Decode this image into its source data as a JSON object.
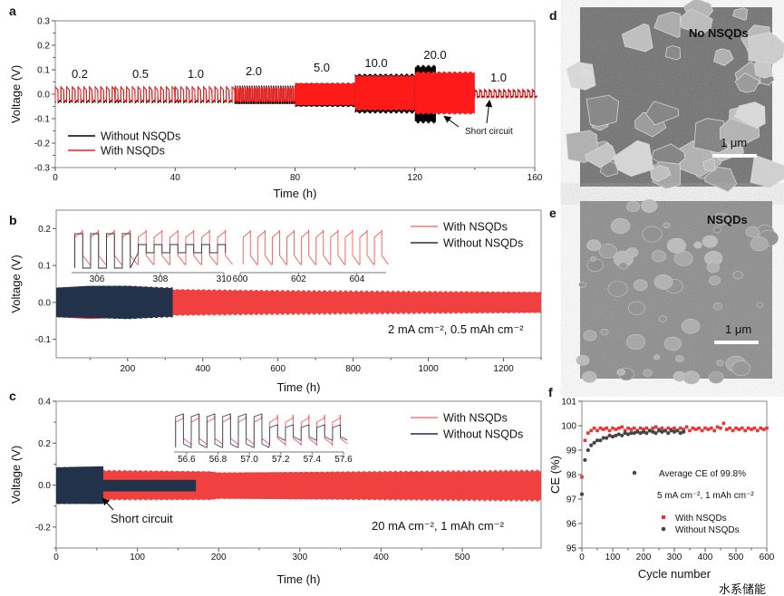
{
  "panel_labels": {
    "a": "a",
    "b": "b",
    "c": "c",
    "d": "d",
    "e": "e",
    "f": "f"
  },
  "colors": {
    "with_nsqds": "#ff1a1a",
    "with_nsqds_bc": "#f04040",
    "without_nsqds_a": "#000000",
    "without_nsqds_bc": "#22324a",
    "ce_with": "#ee3333",
    "ce_without": "#444444"
  },
  "chart_data": [
    {
      "id": "a",
      "type": "line",
      "xlabel": "Time (h)",
      "ylabel": "Voltage (V)",
      "xlim": [
        0,
        160
      ],
      "ylim": [
        -0.3,
        0.3
      ],
      "xticks": [
        "0",
        "40",
        "80",
        "120",
        "160"
      ],
      "yticks": [
        "-0.3",
        "-0.2",
        "-0.1",
        "0.0",
        "0.1",
        "0.2",
        "0.3"
      ],
      "legend": {
        "placement": "lower-left",
        "items": [
          "Without NSQDs",
          "With NSQDs"
        ]
      },
      "annotation": "Short circuit",
      "segments": [
        {
          "label": "0.2",
          "t": [
            0,
            20
          ],
          "with_nsqds": [
            -0.03,
            0.03
          ],
          "without_nsqds": [
            -0.035,
            0.03
          ]
        },
        {
          "label": "0.5",
          "t": [
            20,
            40
          ],
          "with_nsqds": [
            -0.03,
            0.03
          ],
          "without_nsqds": [
            -0.035,
            0.03
          ]
        },
        {
          "label": "1.0",
          "t": [
            40,
            60
          ],
          "with_nsqds": [
            -0.03,
            0.03
          ],
          "without_nsqds": [
            -0.035,
            0.03
          ]
        },
        {
          "label": "2.0",
          "t": [
            60,
            80
          ],
          "with_nsqds": [
            -0.03,
            0.03
          ],
          "without_nsqds": [
            -0.04,
            0.035
          ]
        },
        {
          "label": "5.0",
          "t": [
            80,
            100
          ],
          "with_nsqds": [
            -0.045,
            0.045
          ],
          "without_nsqds": [
            -0.05,
            0.045
          ]
        },
        {
          "label": "10.0",
          "t": [
            100,
            120
          ],
          "with_nsqds": [
            -0.065,
            0.075
          ],
          "without_nsqds": [
            -0.075,
            0.08
          ]
        },
        {
          "label": "20.0",
          "t": [
            120,
            140
          ],
          "with_nsqds": [
            -0.08,
            0.09
          ],
          "without_nsqds": [
            -0.115,
            0.115
          ],
          "without_nsqds_end": 127
        },
        {
          "label": "1.0",
          "t": [
            140,
            160
          ],
          "with_nsqds": [
            -0.015,
            0.02
          ],
          "without_nsqds": [
            -0.01,
            0.015
          ]
        }
      ]
    },
    {
      "id": "b",
      "type": "line",
      "xlabel": "Time (h)",
      "ylabel": "Voltage (V)",
      "xlim": [
        10,
        1300
      ],
      "ylim": [
        -0.15,
        0.25
      ],
      "xticks": [
        "200",
        "400",
        "600",
        "800",
        "1000",
        "1200"
      ],
      "yticks": [
        "-0.1",
        "0.0",
        "0.1",
        "0.2"
      ],
      "legend": {
        "placement": "top-right",
        "items": [
          "With NSQDs",
          "Without NSQDs"
        ]
      },
      "annotation": "2 mA cm⁻², 0.5 mAh cm⁻²",
      "series": [
        {
          "name": "With NSQDs",
          "t": [
            10,
            100,
            200,
            330,
            600,
            900,
            1300
          ],
          "upper": [
            0.03,
            0.035,
            0.035,
            0.035,
            0.032,
            0.03,
            0.028
          ],
          "lower": [
            -0.04,
            -0.045,
            -0.04,
            -0.035,
            -0.032,
            -0.03,
            -0.028
          ]
        },
        {
          "name": "Without NSQDs",
          "t": [
            10,
            100,
            200,
            300,
            320
          ],
          "upper": [
            0.04,
            0.045,
            0.045,
            0.04,
            0.04
          ],
          "lower": [
            -0.04,
            -0.042,
            -0.045,
            -0.04,
            -0.04
          ]
        }
      ],
      "insets": [
        {
          "xlim": [
            305.2,
            310
          ],
          "xticks": [
            "306",
            "308",
            "310"
          ]
        },
        {
          "xlim": [
            600,
            605
          ],
          "xticks": [
            "600",
            "602",
            "604"
          ]
        }
      ]
    },
    {
      "id": "c",
      "type": "line",
      "xlabel": "Time (h)",
      "ylabel": "Voltage (V)",
      "xlim": [
        0,
        597
      ],
      "ylim": [
        -0.3,
        0.4
      ],
      "xticks": [
        "0",
        "100",
        "200",
        "300",
        "400",
        "500"
      ],
      "yticks": [
        "-0.2",
        "0.0",
        "0.2",
        "0.4"
      ],
      "legend": {
        "placement": "top-right",
        "items": [
          "With NSQDs",
          "Without NSQDs"
        ]
      },
      "annotation": "20 mA cm⁻², 1 mAh cm⁻²",
      "short_circuit_label": "Short circuit",
      "series": [
        {
          "name": "With NSQDs",
          "t": [
            58,
            190,
            200,
            400,
            597
          ],
          "upper": [
            0.07,
            0.065,
            0.06,
            0.065,
            0.07
          ],
          "lower": [
            -0.07,
            -0.07,
            -0.065,
            -0.07,
            -0.075
          ]
        },
        {
          "name": "Without NSQDs",
          "t": [
            0,
            58
          ],
          "upper": [
            0.085,
            0.09
          ],
          "lower": [
            -0.09,
            -0.09
          ],
          "shorted": {
            "t": [
              58,
              172
            ],
            "upper": 0.025,
            "lower": -0.03
          }
        }
      ],
      "inset": {
        "xlim": [
          56.52,
          57.6
        ],
        "xticks": [
          "56.6",
          "56.8",
          "57.0",
          "57.2",
          "57.4",
          "57.6"
        ]
      }
    },
    {
      "id": "f",
      "type": "scatter",
      "xlabel": "Cycle number",
      "ylabel": "CE (%)",
      "xlim": [
        0,
        600
      ],
      "ylim": [
        95,
        101
      ],
      "xticks": [
        "0",
        "100",
        "200",
        "300",
        "400",
        "500",
        "600"
      ],
      "yticks": [
        "95",
        "96",
        "97",
        "98",
        "99",
        "100",
        "101"
      ],
      "annotations": [
        "Average CE of 99.8%",
        "5 mA cm⁻², 1 mAh cm⁻²"
      ],
      "legend": {
        "placement": "bottom-right",
        "items": [
          "With NSQDs",
          "Without NSQDs"
        ]
      },
      "series": [
        {
          "name": "With NSQDs",
          "x_step": 10,
          "x_start": 0,
          "values": [
            97.9,
            99.4,
            99.7,
            99.8,
            99.9,
            99.8,
            99.9,
            99.85,
            99.9,
            99.8,
            99.9,
            99.85,
            99.9,
            99.95,
            99.8,
            99.9,
            99.85,
            99.9,
            99.8,
            99.9,
            99.85,
            99.9,
            99.8,
            99.9,
            99.95,
            99.85,
            99.9,
            99.8,
            99.9,
            99.85,
            99.9,
            99.8,
            99.9,
            99.85,
            99.95,
            99.8,
            99.9,
            99.85,
            99.9,
            99.8,
            99.9,
            99.85,
            99.9,
            99.8,
            99.95,
            99.9,
            100.1,
            99.85,
            99.9,
            99.8,
            99.9,
            99.85,
            99.9,
            99.8,
            99.9,
            99.85,
            99.9,
            99.8,
            99.9,
            99.85,
            99.9
          ]
        },
        {
          "name": "Without NSQDs",
          "x_step": 10,
          "x_start": 0,
          "values": [
            97.2,
            98.6,
            99.0,
            99.2,
            99.3,
            99.4,
            99.4,
            99.5,
            99.5,
            99.6,
            99.55,
            99.6,
            99.65,
            99.6,
            99.7,
            99.65,
            99.7,
            99.7,
            99.75,
            99.7,
            99.75,
            99.7,
            99.8,
            99.75,
            99.7,
            99.8,
            99.75,
            99.8,
            99.7,
            99.8,
            99.75,
            99.8,
            99.7,
            99.75
          ]
        }
      ]
    }
  ],
  "sem": {
    "d": {
      "label": "No NSQDs",
      "scale": "1 μm"
    },
    "e": {
      "label": "NSQDs",
      "scale": "1 μm"
    }
  },
  "watermark": "水系储能"
}
